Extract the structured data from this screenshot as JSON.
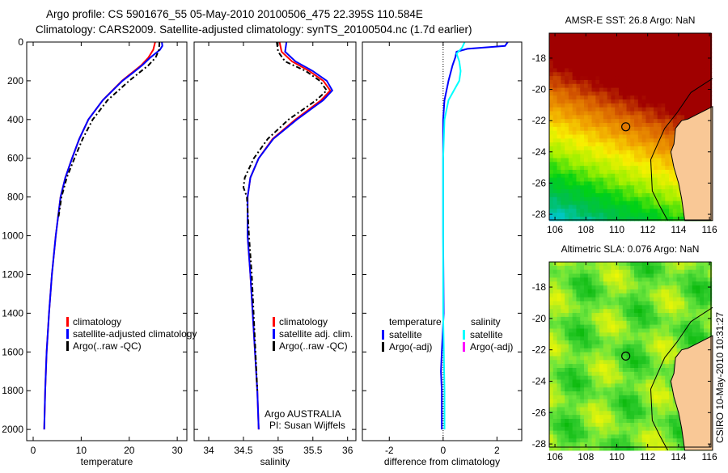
{
  "header": {
    "line1": "Argo profile: CS 5901676_55 05-May-2010 20100506_475 22.395S 110.584E",
    "line2": "Climatology: CARS2009. Satellite-adjusted climatology: synTS_20100504.nc (1.7d earlier)"
  },
  "side_stamp": "CSIRO 10-May-2010 10:31:27",
  "chart_data": [
    {
      "type": "line",
      "id": "temperature",
      "xlabel": "temperature",
      "ylabel": "",
      "xlim": [
        -1.35,
        32
      ],
      "ylim": [
        2058,
        0
      ],
      "xticks": [
        0,
        10,
        20,
        30
      ],
      "yticks": [
        0,
        200,
        400,
        600,
        800,
        1000,
        1200,
        1400,
        1600,
        1800,
        2000
      ],
      "legend": [
        "climatology",
        "satellite-adjusted climatology",
        "Argo(..raw -QC)"
      ],
      "legend_colors": [
        "#ff0000",
        "#0000ff",
        "#000000"
      ],
      "series": [
        {
          "name": "climatology",
          "color": "#ff0000",
          "style": "solid",
          "depth": [
            0,
            40,
            80,
            120,
            160,
            200,
            300,
            400,
            500,
            600,
            700,
            800,
            1000,
            1200,
            1400,
            1600,
            1800,
            2000
          ],
          "values": [
            25.4,
            25.0,
            24.0,
            22.5,
            20.5,
            18.5,
            14.5,
            11.5,
            9.6,
            8.1,
            6.7,
            5.7,
            4.7,
            3.9,
            3.3,
            2.8,
            2.5,
            2.3
          ]
        },
        {
          "name": "satellite-adjusted climatology",
          "color": "#0000ff",
          "style": "solid",
          "depth": [
            0,
            20,
            40,
            80,
            120,
            160,
            200,
            300,
            400,
            500,
            600,
            700,
            800,
            1000,
            1200,
            1400,
            1600,
            1800,
            2000
          ],
          "values": [
            26.8,
            26.9,
            26.4,
            24.4,
            22.7,
            20.7,
            18.6,
            14.5,
            11.5,
            9.6,
            8.1,
            6.7,
            5.7,
            4.7,
            3.9,
            3.3,
            2.8,
            2.5,
            2.3
          ]
        },
        {
          "name": "Argo(..raw -QC)",
          "color": "#000000",
          "style": "dashdot",
          "depth": [
            0,
            40,
            80,
            120,
            160,
            200,
            300,
            400,
            500,
            600,
            700,
            800,
            900
          ],
          "values": [
            26.3,
            26.2,
            25.5,
            24.0,
            22.0,
            20.0,
            15.5,
            12.4,
            10.3,
            8.6,
            7.0,
            5.9,
            5.3
          ]
        }
      ]
    },
    {
      "type": "line",
      "id": "salinity",
      "xlabel": "salinity",
      "xlim": [
        33.79,
        36.12
      ],
      "ylim": [
        2058,
        0
      ],
      "xticks": [
        34,
        34.5,
        35,
        35.5,
        36
      ],
      "legend": [
        "climatology",
        "satellite adj. clim.",
        "Argo(..raw -QC)"
      ],
      "legend_colors": [
        "#ff0000",
        "#0000ff",
        "#000000"
      ],
      "annotation": [
        "Argo AUSTRALIA",
        "PI: Susan Wijffels"
      ],
      "series": [
        {
          "name": "climatology",
          "color": "#ff0000",
          "style": "solid",
          "depth": [
            0,
            50,
            100,
            150,
            200,
            250,
            300,
            400,
            500,
            600,
            700,
            800,
            1000,
            1200,
            1500,
            1800,
            2000
          ],
          "values": [
            35.02,
            35.05,
            35.2,
            35.45,
            35.65,
            35.75,
            35.62,
            35.25,
            34.92,
            34.72,
            34.6,
            34.56,
            34.56,
            34.6,
            34.65,
            34.7,
            34.72
          ]
        },
        {
          "name": "satellite adj. clim.",
          "color": "#0000ff",
          "style": "solid",
          "depth": [
            0,
            50,
            100,
            150,
            200,
            250,
            300,
            400,
            500,
            600,
            700,
            800,
            1000,
            1200,
            1500,
            1800,
            2000
          ],
          "values": [
            35.12,
            35.1,
            35.25,
            35.5,
            35.7,
            35.78,
            35.65,
            35.27,
            34.93,
            34.72,
            34.6,
            34.56,
            34.56,
            34.6,
            34.65,
            34.7,
            34.72
          ]
        },
        {
          "name": "Argo(..raw -QC)",
          "color": "#000000",
          "style": "dashdot",
          "depth": [
            0,
            50,
            100,
            150,
            200,
            250,
            300,
            400,
            500,
            600,
            700,
            750,
            800,
            1000,
            1200,
            1500,
            1800
          ],
          "values": [
            34.98,
            35.0,
            35.1,
            35.4,
            35.6,
            35.7,
            35.55,
            35.15,
            34.85,
            34.65,
            34.52,
            34.5,
            34.55,
            34.58,
            34.62,
            34.66,
            34.7
          ]
        }
      ]
    },
    {
      "type": "line",
      "id": "difference",
      "xlabel": "difference from climatology",
      "xlim": [
        -3.0,
        2.92
      ],
      "ylim": [
        2058,
        0
      ],
      "xticks": [
        -2,
        0,
        2
      ],
      "legend_headers": [
        "temperature",
        "salinity"
      ],
      "legend": [
        "satellite",
        "Argo(-adj)",
        "satellite",
        "Argo(-adj)"
      ],
      "legend_colors": [
        "#0000ff",
        "#000000",
        "#00ffff",
        "#ff00ff"
      ],
      "series": [
        {
          "name": "temperature satellite",
          "color": "#0000ff",
          "style": "solid",
          "depth": [
            0,
            20,
            35,
            50,
            80,
            120,
            200,
            300,
            400,
            600,
            1000,
            1400,
            1600,
            1700,
            1800,
            2000
          ],
          "values": [
            2.4,
            2.3,
            0.9,
            0.5,
            0.45,
            0.35,
            0.2,
            0.05,
            0.0,
            0.0,
            0.0,
            0.02,
            -0.05,
            -0.08,
            -0.05,
            -0.05
          ]
        },
        {
          "name": "salinity satellite",
          "color": "#00ffff",
          "style": "solid",
          "depth": [
            0,
            30,
            60,
            100,
            150,
            200,
            250,
            300,
            400,
            600,
            1000,
            1400,
            1800,
            2000
          ],
          "values": [
            0.8,
            0.7,
            0.5,
            0.6,
            0.65,
            0.6,
            0.4,
            0.2,
            0.05,
            0.0,
            0.0,
            0.0,
            0.05,
            0.05
          ]
        }
      ]
    }
  ],
  "maps": [
    {
      "title": "AMSR-E SST: 26.8 Argo: NaN",
      "xticks": [
        106,
        108,
        110,
        112,
        114,
        116
      ],
      "yticks": [
        -18,
        -20,
        -22,
        -24,
        -26,
        -28
      ],
      "ytick_labels": [
        "-18",
        "-20",
        "-22",
        "-24",
        "-26",
        "-28"
      ],
      "marker": [
        110.584,
        -22.395
      ]
    },
    {
      "title": "Altimetric SLA: 0.076 Argo: NaN",
      "xticks": [
        106,
        108,
        110,
        112,
        114,
        116
      ],
      "yticks": [
        -18,
        -20,
        -22,
        -24,
        -26,
        -28
      ],
      "ytick_labels": [
        "-18",
        "-20",
        "-22",
        "-24",
        "-26",
        "-28"
      ],
      "marker": [
        110.584,
        -22.395
      ]
    }
  ],
  "colors": {
    "land": "#f9c896"
  }
}
